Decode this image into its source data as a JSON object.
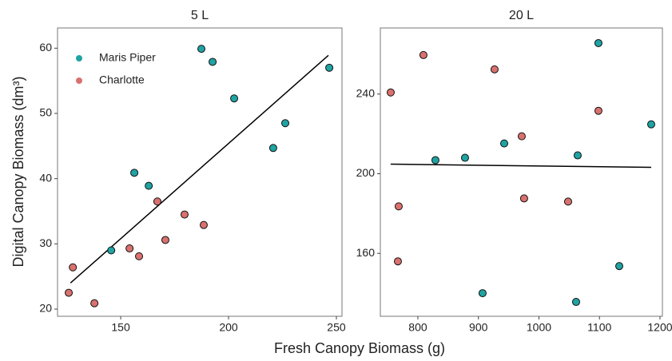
{
  "chart_data": [
    {
      "type": "scatter",
      "title": "5 L",
      "ylabel": "Digital Canopy Biomass (dm³)",
      "xlabel": "Fresh Canopy Biomass (g)",
      "legend": "top-left",
      "xlim": [
        120.7,
        252.6
      ],
      "ylim": [
        18.9,
        63.1
      ],
      "xticks": [
        150,
        200,
        250
      ],
      "yticks": [
        20,
        30,
        40,
        50,
        60
      ],
      "series": [
        {
          "name": "Maris Piper",
          "color": "#1fa3a3",
          "x": [
            187.4,
            192.6,
            202.6,
            226.3,
            220.7,
            246.7,
            156.3,
            163.0,
            145.6
          ],
          "values": [
            59.9,
            57.9,
            52.3,
            48.5,
            44.7,
            57.0,
            40.9,
            38.9,
            29.0
          ]
        },
        {
          "name": "Charlotte",
          "color": "#d9716e",
          "x": [
            127.8,
            125.9,
            137.8,
            154.1,
            167.0,
            170.7,
            158.5,
            179.6,
            188.5
          ],
          "values": [
            26.4,
            22.5,
            20.9,
            29.3,
            36.5,
            30.6,
            28.1,
            34.5,
            32.9
          ]
        }
      ],
      "fit": {
        "x": [
          126.7,
          246.3
        ],
        "values": [
          24.0,
          58.9
        ]
      }
    },
    {
      "type": "scatter",
      "title": "20 L",
      "xlim": [
        738,
        1204
      ],
      "ylim": [
        128.4,
        273.2
      ],
      "xticks": [
        800,
        900,
        1000,
        1100,
        1200
      ],
      "yticks": [
        160,
        200,
        240
      ],
      "series": [
        {
          "color": "#1fa3a3",
          "x": [
            1098.3,
            1185.5,
            942.6,
            1064,
            829.0,
            877.9,
            1132.7,
            906.9,
            1061.4
          ],
          "values": [
            265.6,
            224.8,
            215.2,
            209.2,
            206.8,
            208,
            153.6,
            140,
            135.6
          ]
        },
        {
          "color": "#d9716e",
          "x": [
            755.1,
            809.2,
            926.7,
            1098.3,
            971.6,
            975.5,
            1048.2,
            768.3,
            767.0
          ],
          "values": [
            240.8,
            259.6,
            252.4,
            231.6,
            218.8,
            187.6,
            186,
            183.6,
            156
          ]
        }
      ],
      "fit": {
        "x": [
          755.1,
          1185.5
        ],
        "values": [
          204.8,
          203.2
        ]
      }
    }
  ]
}
